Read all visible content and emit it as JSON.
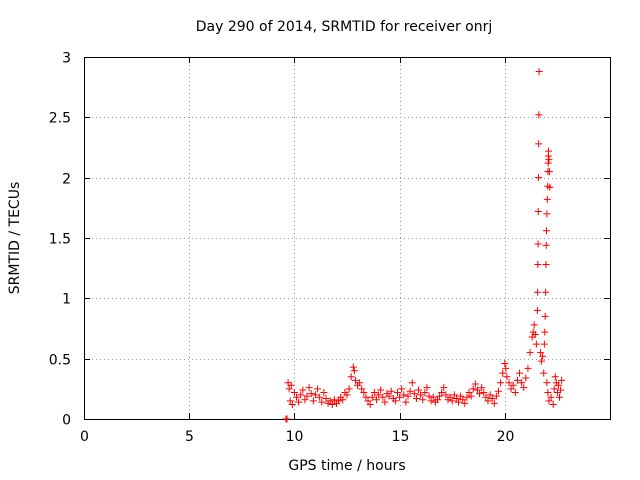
{
  "chart_data": {
    "type": "scatter",
    "title": "Day 290 of 2014, SRMTID for receiver onrj",
    "xlabel": "GPS time / hours",
    "ylabel": "SRMTID / TECUs",
    "xlim": [
      0,
      25
    ],
    "ylim": [
      0,
      3
    ],
    "xticks": [
      0,
      5,
      10,
      15,
      20
    ],
    "xtick_labels": [
      "0",
      "5",
      "10",
      "15",
      "20"
    ],
    "yticks": [
      0,
      0.5,
      1,
      1.5,
      2,
      2.5,
      3
    ],
    "ytick_labels": [
      "0",
      "0.5",
      "1",
      "1.5",
      "2",
      "2.5",
      "3"
    ],
    "grid": true,
    "marker": "+",
    "color": "#ff0000",
    "series": [
      {
        "name": "SRMTID",
        "points": [
          [
            9.6,
            0.0
          ],
          [
            9.65,
            0.0
          ],
          [
            9.7,
            0.3
          ],
          [
            9.75,
            0.25
          ],
          [
            9.8,
            0.15
          ],
          [
            9.85,
            0.28
          ],
          [
            9.9,
            0.12
          ],
          [
            10.0,
            0.22
          ],
          [
            10.1,
            0.18
          ],
          [
            10.2,
            0.14
          ],
          [
            10.3,
            0.2
          ],
          [
            10.4,
            0.24
          ],
          [
            10.5,
            0.16
          ],
          [
            10.6,
            0.19
          ],
          [
            10.7,
            0.26
          ],
          [
            10.8,
            0.21
          ],
          [
            10.9,
            0.15
          ],
          [
            11.0,
            0.2
          ],
          [
            11.1,
            0.25
          ],
          [
            11.2,
            0.18
          ],
          [
            11.3,
            0.14
          ],
          [
            11.4,
            0.22
          ],
          [
            11.5,
            0.17
          ],
          [
            11.6,
            0.13
          ],
          [
            11.7,
            0.15
          ],
          [
            11.8,
            0.12
          ],
          [
            11.9,
            0.16
          ],
          [
            12.0,
            0.13
          ],
          [
            12.1,
            0.15
          ],
          [
            12.2,
            0.18
          ],
          [
            12.3,
            0.16
          ],
          [
            12.4,
            0.22
          ],
          [
            12.5,
            0.2
          ],
          [
            12.6,
            0.25
          ],
          [
            12.7,
            0.35
          ],
          [
            12.8,
            0.43
          ],
          [
            12.85,
            0.4
          ],
          [
            12.9,
            0.32
          ],
          [
            13.0,
            0.28
          ],
          [
            13.1,
            0.3
          ],
          [
            13.2,
            0.25
          ],
          [
            13.3,
            0.22
          ],
          [
            13.4,
            0.18
          ],
          [
            13.5,
            0.15
          ],
          [
            13.6,
            0.12
          ],
          [
            13.7,
            0.18
          ],
          [
            13.8,
            0.22
          ],
          [
            13.9,
            0.16
          ],
          [
            14.0,
            0.2
          ],
          [
            14.1,
            0.24
          ],
          [
            14.2,
            0.18
          ],
          [
            14.3,
            0.14
          ],
          [
            14.4,
            0.21
          ],
          [
            14.5,
            0.19
          ],
          [
            14.6,
            0.23
          ],
          [
            14.7,
            0.17
          ],
          [
            14.8,
            0.15
          ],
          [
            14.9,
            0.22
          ],
          [
            15.0,
            0.18
          ],
          [
            15.1,
            0.25
          ],
          [
            15.2,
            0.2
          ],
          [
            15.3,
            0.14
          ],
          [
            15.4,
            0.19
          ],
          [
            15.5,
            0.23
          ],
          [
            15.6,
            0.3
          ],
          [
            15.7,
            0.21
          ],
          [
            15.8,
            0.17
          ],
          [
            15.9,
            0.24
          ],
          [
            16.0,
            0.2
          ],
          [
            16.1,
            0.16
          ],
          [
            16.2,
            0.22
          ],
          [
            16.3,
            0.26
          ],
          [
            16.4,
            0.19
          ],
          [
            16.5,
            0.15
          ],
          [
            16.6,
            0.18
          ],
          [
            16.7,
            0.14
          ],
          [
            16.8,
            0.16
          ],
          [
            16.9,
            0.19
          ],
          [
            17.0,
            0.22
          ],
          [
            17.1,
            0.26
          ],
          [
            17.2,
            0.2
          ],
          [
            17.3,
            0.16
          ],
          [
            17.4,
            0.18
          ],
          [
            17.5,
            0.15
          ],
          [
            17.6,
            0.2
          ],
          [
            17.7,
            0.17
          ],
          [
            17.8,
            0.14
          ],
          [
            17.9,
            0.19
          ],
          [
            18.0,
            0.16
          ],
          [
            18.1,
            0.13
          ],
          [
            18.2,
            0.18
          ],
          [
            18.3,
            0.22
          ],
          [
            18.4,
            0.19
          ],
          [
            18.5,
            0.25
          ],
          [
            18.6,
            0.29
          ],
          [
            18.7,
            0.24
          ],
          [
            18.8,
            0.21
          ],
          [
            18.9,
            0.26
          ],
          [
            19.0,
            0.22
          ],
          [
            19.1,
            0.18
          ],
          [
            19.2,
            0.15
          ],
          [
            19.3,
            0.2
          ],
          [
            19.4,
            0.17
          ],
          [
            19.5,
            0.13
          ],
          [
            19.6,
            0.19
          ],
          [
            19.7,
            0.23
          ],
          [
            19.8,
            0.3
          ],
          [
            19.9,
            0.38
          ],
          [
            20.0,
            0.46
          ],
          [
            20.05,
            0.42
          ],
          [
            20.1,
            0.35
          ],
          [
            20.2,
            0.3
          ],
          [
            20.3,
            0.25
          ],
          [
            20.4,
            0.28
          ],
          [
            20.5,
            0.22
          ],
          [
            20.6,
            0.32
          ],
          [
            20.7,
            0.38
          ],
          [
            20.8,
            0.3
          ],
          [
            20.9,
            0.26
          ],
          [
            21.0,
            0.34
          ],
          [
            21.1,
            0.42
          ],
          [
            21.2,
            0.55
          ],
          [
            21.3,
            0.68
          ],
          [
            21.35,
            0.72
          ],
          [
            21.4,
            0.78
          ],
          [
            21.45,
            0.7
          ],
          [
            21.5,
            0.62
          ],
          [
            21.55,
            0.9
          ],
          [
            21.56,
            1.05
          ],
          [
            21.57,
            1.28
          ],
          [
            21.58,
            1.45
          ],
          [
            21.59,
            1.72
          ],
          [
            21.6,
            2.0
          ],
          [
            21.61,
            2.28
          ],
          [
            21.62,
            2.52
          ],
          [
            21.63,
            2.88
          ],
          [
            21.7,
            0.55
          ],
          [
            21.75,
            0.48
          ],
          [
            21.8,
            0.52
          ],
          [
            21.85,
            0.38
          ],
          [
            21.88,
            0.62
          ],
          [
            21.9,
            0.72
          ],
          [
            21.92,
            0.85
          ],
          [
            21.94,
            1.05
          ],
          [
            21.96,
            1.28
          ],
          [
            21.97,
            1.44
          ],
          [
            21.98,
            1.56
          ],
          [
            22.0,
            1.7
          ],
          [
            22.02,
            1.82
          ],
          [
            22.04,
            1.93
          ],
          [
            22.05,
            2.05
          ],
          [
            22.06,
            2.12
          ],
          [
            22.07,
            2.18
          ],
          [
            22.08,
            2.22
          ],
          [
            22.1,
            2.15
          ],
          [
            22.12,
            2.05
          ],
          [
            22.14,
            1.92
          ],
          [
            22.0,
            0.3
          ],
          [
            22.05,
            0.22
          ],
          [
            22.1,
            0.15
          ],
          [
            22.2,
            0.18
          ],
          [
            22.3,
            0.12
          ],
          [
            22.35,
            0.25
          ],
          [
            22.4,
            0.35
          ],
          [
            22.45,
            0.3
          ],
          [
            22.5,
            0.22
          ],
          [
            22.55,
            0.28
          ],
          [
            22.6,
            0.18
          ],
          [
            22.65,
            0.24
          ],
          [
            22.7,
            0.32
          ]
        ]
      }
    ]
  }
}
